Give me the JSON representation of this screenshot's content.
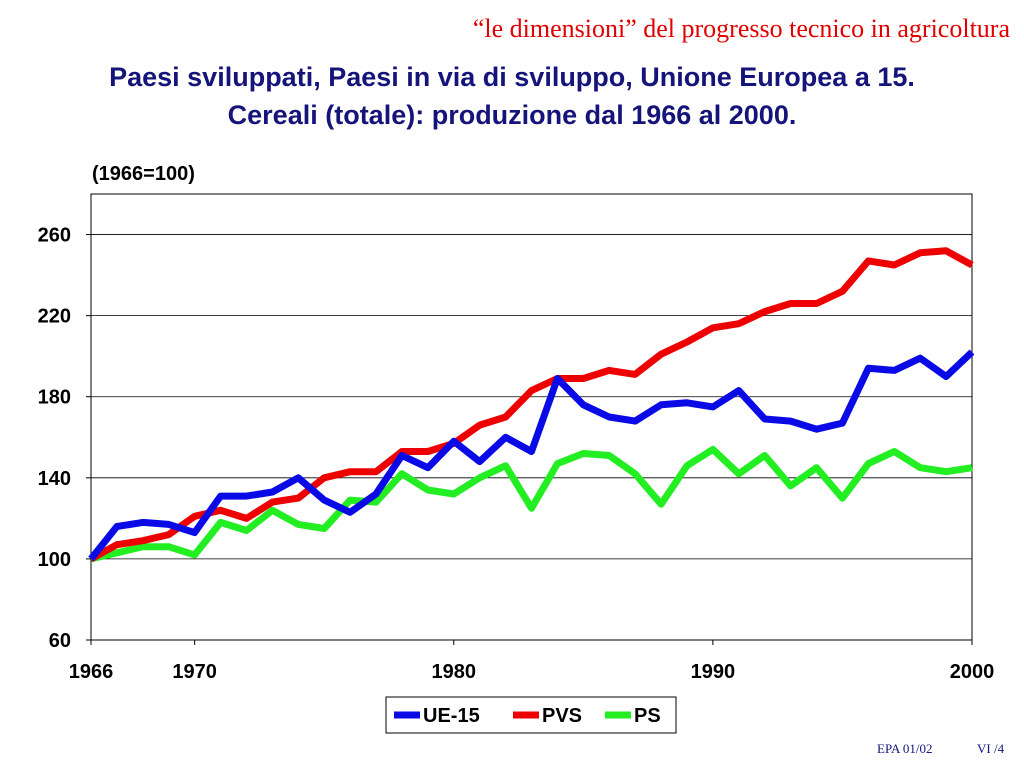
{
  "header": {
    "title": "“le dimensioni” del progresso tecnico in agricoltura",
    "subtitle_line1": "Paesi sviluppati, Paesi in via di sviluppo, Unione Europea a 15.",
    "subtitle_line2": "Cereali (totale): produzione dal 1966 al 2000."
  },
  "footer": {
    "code": "EPA 01/02",
    "page": "VI /4"
  },
  "colors": {
    "title": "#e00000",
    "subtitle": "#14147a",
    "ue15": "#0a0ae6",
    "pvs": "#ee0000",
    "ps": "#22ee22"
  },
  "chart_data": {
    "type": "line",
    "ylabel": "(1966=100)",
    "xlabel": "",
    "xlim": [
      1966,
      2000
    ],
    "ylim": [
      60,
      280
    ],
    "xticks": [
      1966,
      1970,
      1980,
      1990,
      2000
    ],
    "yticks": [
      60,
      100,
      140,
      180,
      220,
      260
    ],
    "grid": "horizontal",
    "legend": "bottom",
    "x": [
      1966,
      1967,
      1968,
      1969,
      1970,
      1971,
      1972,
      1973,
      1974,
      1975,
      1976,
      1977,
      1978,
      1979,
      1980,
      1981,
      1982,
      1983,
      1984,
      1985,
      1986,
      1987,
      1988,
      1989,
      1990,
      1991,
      1992,
      1993,
      1994,
      1995,
      1996,
      1997,
      1998,
      1999,
      2000
    ],
    "series": [
      {
        "name": "UE-15",
        "color": "#0a0ae6",
        "values": [
          100,
          116,
          118,
          117,
          113,
          131,
          131,
          133,
          140,
          129,
          123,
          132,
          151,
          145,
          158,
          148,
          160,
          153,
          189,
          176,
          170,
          168,
          176,
          177,
          175,
          183,
          169,
          168,
          164,
          167,
          194,
          193,
          199,
          190,
          202
        ]
      },
      {
        "name": "PVS",
        "color": "#ee0000",
        "values": [
          100,
          107,
          109,
          112,
          121,
          124,
          120,
          128,
          130,
          140,
          143,
          143,
          153,
          153,
          157,
          166,
          170,
          183,
          189,
          189,
          193,
          191,
          201,
          207,
          214,
          216,
          222,
          226,
          226,
          232,
          247,
          245,
          251,
          252,
          245
        ]
      },
      {
        "name": "PS",
        "color": "#22ee22",
        "values": [
          100,
          103,
          106,
          106,
          102,
          118,
          114,
          124,
          117,
          115,
          129,
          128,
          142,
          134,
          132,
          140,
          146,
          125,
          147,
          152,
          151,
          142,
          127,
          146,
          154,
          142,
          151,
          136,
          145,
          130,
          147,
          153,
          145,
          143,
          145
        ]
      }
    ]
  }
}
